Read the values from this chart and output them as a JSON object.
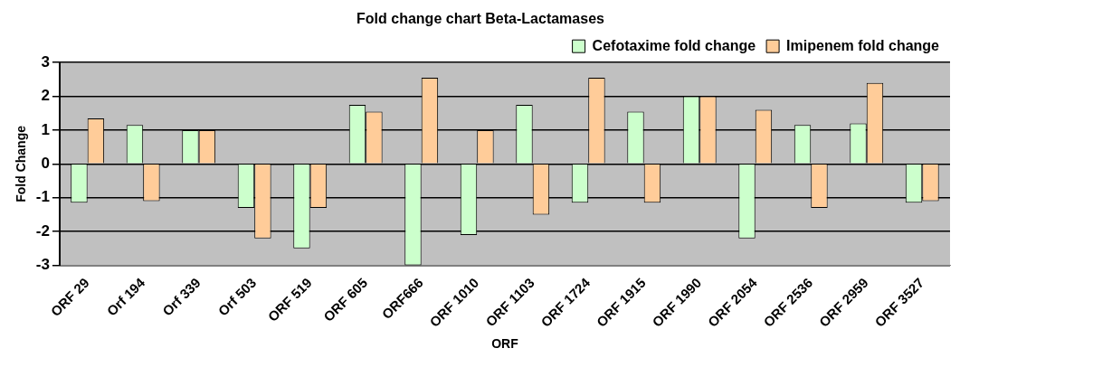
{
  "chart_data": {
    "type": "bar",
    "title": "Fold change chart Beta-Lactamases",
    "xlabel": "ORF",
    "ylabel": "Fold Change",
    "categories": [
      "ORF 29",
      "Orf 194",
      "Orf 339",
      "Orf 503",
      "ORF 519",
      "ORF 605",
      "ORF666",
      "ORF 1010",
      "ORF 1103",
      "ORF 1724",
      "ORF 1915",
      "ORF 1990",
      "ORF 2054",
      "ORF 2536",
      "ORF 2959",
      "ORF 3527"
    ],
    "series": [
      {
        "name": "Cefotaxime fold change",
        "color": "#ccffcc",
        "values": [
          -1.15,
          1.15,
          1.0,
          -1.3,
          -2.5,
          1.75,
          -3,
          -2.1,
          1.75,
          -1.15,
          1.55,
          2.0,
          -2.2,
          1.15,
          1.2,
          -1.15
        ]
      },
      {
        "name": "Imipenem fold change",
        "color": "#ffcc99",
        "values": [
          1.35,
          -1.1,
          1.0,
          -2.2,
          -1.3,
          1.55,
          2.55,
          1.0,
          -1.5,
          2.55,
          -1.15,
          2.0,
          1.6,
          -1.3,
          2.4,
          -1.1
        ]
      }
    ],
    "ylim": [
      -3,
      3
    ],
    "yticks": [
      -3,
      -2,
      -1,
      0,
      1,
      2,
      3
    ],
    "grid": "y",
    "legend": "top right"
  }
}
